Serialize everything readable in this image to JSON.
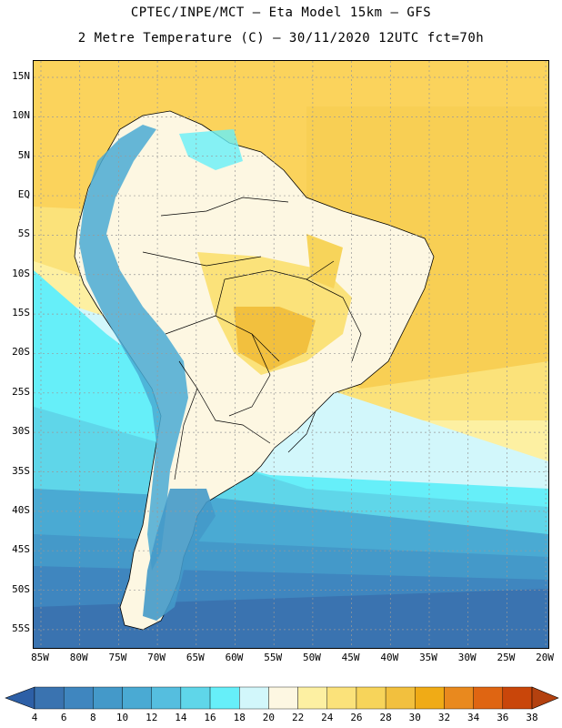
{
  "header": {
    "line1": "CPTEC/INPE/MCT –  Eta Model 15km – GFS",
    "line2": "2 Metre Temperature (C) – 30/11/2020 12UTC fct=70h"
  },
  "lat_labels": [
    "15N",
    "10N",
    "5N",
    "EQ",
    "5S",
    "10S",
    "15S",
    "20S",
    "25S",
    "30S",
    "35S",
    "40S",
    "45S",
    "50S",
    "55S"
  ],
  "lon_labels": [
    "85W",
    "80W",
    "75W",
    "70W",
    "65W",
    "60W",
    "55W",
    "50W",
    "45W",
    "40W",
    "35W",
    "30W",
    "25W",
    "20W"
  ],
  "colorbar": {
    "labels": [
      "4",
      "6",
      "8",
      "10",
      "12",
      "14",
      "16",
      "18",
      "20",
      "22",
      "24",
      "26",
      "28",
      "30",
      "32",
      "34",
      "36",
      "38"
    ],
    "colors": [
      "#3a73b0",
      "#3f86bf",
      "#4499c9",
      "#4aaad3",
      "#55bedf",
      "#5fd6e9",
      "#66eff9",
      "#d2f7fb",
      "#fdf7e2",
      "#fdf0a2",
      "#fbe27a",
      "#f7d45a",
      "#f2c03e",
      "#f0ab16",
      "#e9891e",
      "#df6512",
      "#c9460a"
    ],
    "under_color": "#2d5fa6",
    "over_color": "#b3410f"
  },
  "map": {
    "ocean_warm": "#fbd35c",
    "grid_color": "#999999"
  }
}
